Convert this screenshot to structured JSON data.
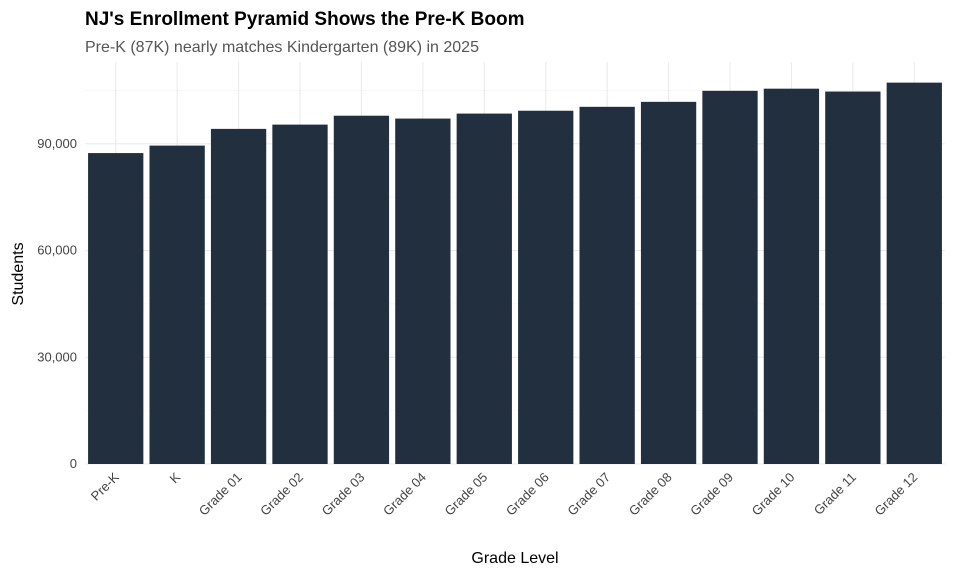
{
  "chart_data": {
    "type": "bar",
    "title": "NJ's Enrollment Pyramid Shows the Pre-K Boom",
    "subtitle": "Pre-K (87K) nearly matches Kindergarten (89K) in 2025",
    "xlabel": "Grade Level",
    "ylabel": "Students",
    "categories": [
      "Pre-K",
      "K",
      "Grade 01",
      "Grade 02",
      "Grade 03",
      "Grade 04",
      "Grade 05",
      "Grade 06",
      "Grade 07",
      "Grade 08",
      "Grade 09",
      "Grade 10",
      "Grade 11",
      "Grade 12"
    ],
    "values": [
      87400,
      89500,
      94200,
      95400,
      97900,
      97100,
      98500,
      99300,
      100400,
      101800,
      104900,
      105500,
      104700,
      107200
    ],
    "yticks": [
      0,
      30000,
      60000,
      90000
    ],
    "ytick_labels": [
      "0",
      "30,000",
      "60,000",
      "90,000"
    ],
    "ylim": [
      0,
      113000
    ],
    "grid": true,
    "bar_color": "#222f3e"
  }
}
